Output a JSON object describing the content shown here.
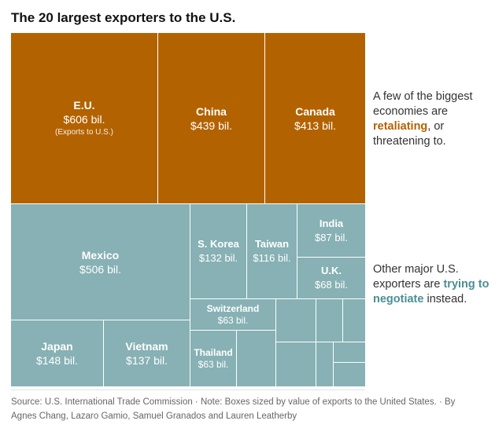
{
  "title": "The 20 largest exporters to the U.S.",
  "colors": {
    "retaliating": "#b36200",
    "negotiating": "#87b1b4",
    "negotiate_text": "#4a8f94"
  },
  "chart_data": {
    "type": "treemap",
    "title": "The 20 largest exporters to the U.S.",
    "unit": "billion USD",
    "groups": [
      {
        "name": "retaliating",
        "items": [
          {
            "name": "E.U.",
            "value": 606,
            "label": "$606 bil.",
            "note": "(Exports to U.S.)"
          },
          {
            "name": "China",
            "value": 439,
            "label": "$439 bil."
          },
          {
            "name": "Canada",
            "value": 413,
            "label": "$413 bil."
          }
        ]
      },
      {
        "name": "negotiating",
        "items": [
          {
            "name": "Mexico",
            "value": 506,
            "label": "$506 bil."
          },
          {
            "name": "Japan",
            "value": 148,
            "label": "$148 bil."
          },
          {
            "name": "Vietnam",
            "value": 137,
            "label": "$137 bil."
          },
          {
            "name": "S. Korea",
            "value": 132,
            "label": "$132 bil."
          },
          {
            "name": "Taiwan",
            "value": 116,
            "label": "$116 bil."
          },
          {
            "name": "India",
            "value": 87,
            "label": "$87 bil."
          },
          {
            "name": "U.K.",
            "value": 68,
            "label": "$68 bil."
          },
          {
            "name": "Switzerland",
            "value": 63,
            "label": "$63 bil."
          },
          {
            "name": "Thailand",
            "value": 63,
            "label": "$63 bil."
          }
        ]
      }
    ]
  },
  "annotations": {
    "retaliating": {
      "before": "A few of the biggest economies are ",
      "highlight": "retaliating",
      "after": ", or threatening to."
    },
    "negotiating": {
      "before": "Other major U.S. exporters are ",
      "highlight": "trying to negotiate",
      "after": " instead."
    }
  },
  "source": "Source: U.S. International Trade Commission · Note: Boxes sized by value of exports to the United States. · By Agnes Chang, Lazaro Gamio, Samuel Granados and Lauren Leatherby"
}
